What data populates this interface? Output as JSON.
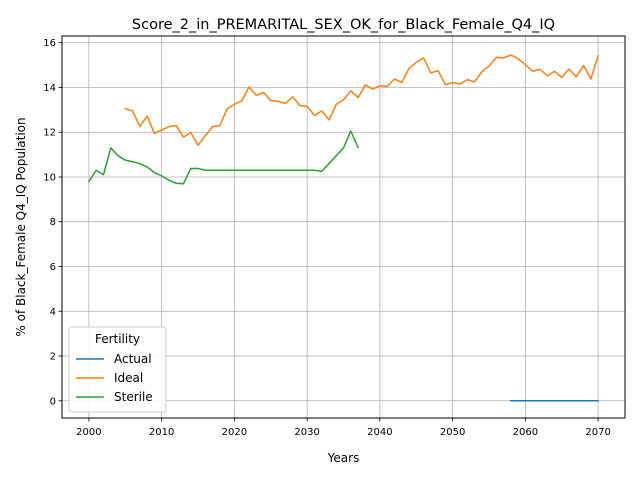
{
  "chart_data": {
    "type": "line",
    "title": "Score_2_in_PREMARITAL_SEX_OK_for_Black_Female_Q4_IQ",
    "xlabel": "Years",
    "ylabel": "% of Black_Female Q4_IQ Population",
    "xlim": [
      1996.3,
      2073.7
    ],
    "ylim": [
      -0.77,
      16.3
    ],
    "xticks": [
      2000,
      2010,
      2020,
      2030,
      2040,
      2050,
      2060,
      2070
    ],
    "yticks": [
      0,
      2,
      4,
      6,
      8,
      10,
      12,
      14,
      16
    ],
    "grid": true,
    "legend": {
      "title": "Fertility",
      "position": "lower-left"
    },
    "series": [
      {
        "name": "Actual",
        "color": "#1f77b4",
        "x": [
          2058,
          2059,
          2060,
          2061,
          2062,
          2063,
          2064,
          2065,
          2066,
          2067,
          2068,
          2069,
          2070
        ],
        "y": [
          0,
          0,
          0,
          0,
          0,
          0,
          0,
          0,
          0,
          0,
          0,
          0,
          0
        ]
      },
      {
        "name": "Ideal",
        "color": "#ff7f0e",
        "x": [
          2005,
          2006,
          2007,
          2008,
          2009,
          2010,
          2011,
          2012,
          2013,
          2014,
          2015,
          2016,
          2017,
          2018,
          2019,
          2020,
          2021,
          2022,
          2023,
          2024,
          2025,
          2026,
          2027,
          2028,
          2029,
          2030,
          2031,
          2032,
          2033,
          2034,
          2035,
          2036,
          2037,
          2038,
          2039,
          2040,
          2041,
          2042,
          2043,
          2044,
          2045,
          2046,
          2047,
          2048,
          2049,
          2050,
          2051,
          2052,
          2053,
          2054,
          2055,
          2056,
          2057,
          2058,
          2059,
          2060,
          2061,
          2062,
          2063,
          2064,
          2065,
          2066,
          2067,
          2068,
          2069,
          2070
        ],
        "y": [
          13.05,
          12.95,
          12.25,
          12.72,
          11.95,
          12.1,
          12.25,
          12.3,
          11.78,
          11.98,
          11.42,
          11.85,
          12.25,
          12.3,
          13.05,
          13.25,
          13.4,
          14.02,
          13.65,
          13.78,
          13.42,
          13.38,
          13.28,
          13.58,
          13.2,
          13.15,
          12.75,
          12.95,
          12.55,
          13.25,
          13.45,
          13.85,
          13.55,
          14.12,
          13.92,
          14.08,
          14.05,
          14.38,
          14.22,
          14.85,
          15.12,
          15.32,
          14.65,
          14.75,
          14.12,
          14.22,
          14.15,
          14.35,
          14.25,
          14.7,
          14.95,
          15.35,
          15.32,
          15.45,
          15.28,
          15.02,
          14.72,
          14.82,
          14.52,
          14.72,
          14.45,
          14.82,
          14.48,
          14.98,
          14.38,
          15.42
        ]
      },
      {
        "name": "Sterile",
        "color": "#2ca02c",
        "x": [
          2000,
          2001,
          2002,
          2003,
          2004,
          2005,
          2006,
          2007,
          2008,
          2009,
          2010,
          2011,
          2012,
          2013,
          2014,
          2015,
          2016,
          2017,
          2018,
          2019,
          2020,
          2021,
          2022,
          2023,
          2024,
          2025,
          2026,
          2027,
          2028,
          2029,
          2030,
          2031,
          2032,
          2033,
          2034,
          2035,
          2036,
          2037
        ],
        "y": [
          9.8,
          10.3,
          10.1,
          11.3,
          10.95,
          10.75,
          10.68,
          10.6,
          10.45,
          10.2,
          10.05,
          9.85,
          9.72,
          9.7,
          10.38,
          10.38,
          10.3,
          10.3,
          10.3,
          10.3,
          10.3,
          10.3,
          10.3,
          10.3,
          10.3,
          10.3,
          10.3,
          10.3,
          10.3,
          10.3,
          10.3,
          10.3,
          10.25,
          10.6,
          10.95,
          11.3,
          12.05,
          11.32
        ]
      }
    ]
  }
}
